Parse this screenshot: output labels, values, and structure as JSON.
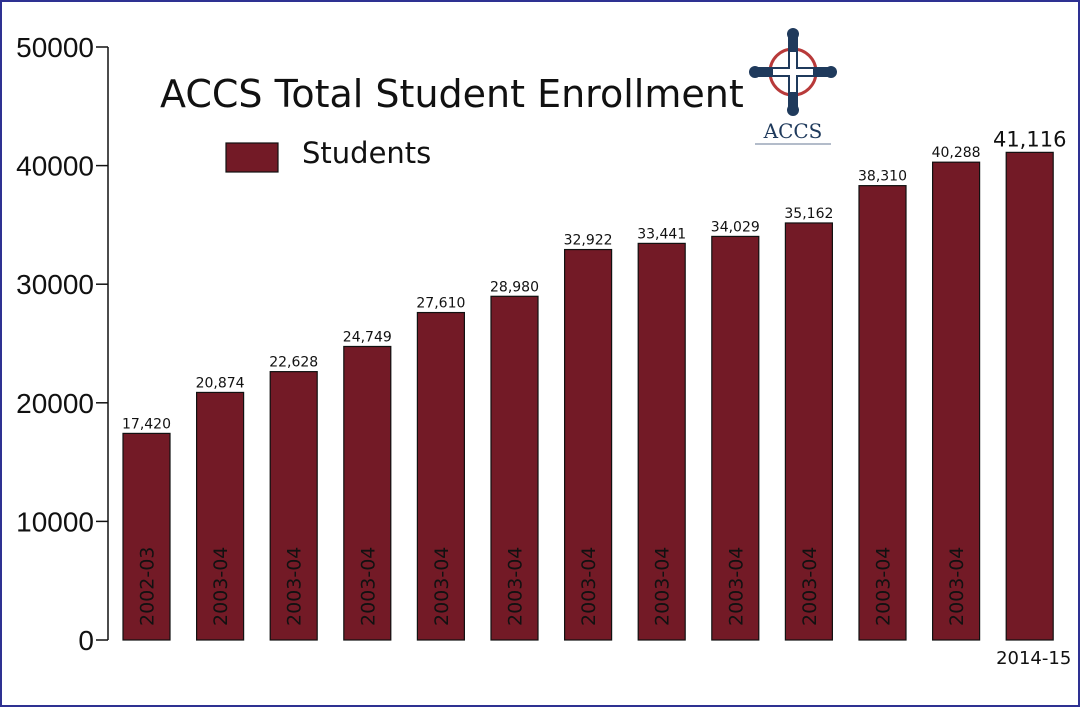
{
  "chart_data": {
    "type": "bar",
    "title": "ACCS Total Student Enrollment",
    "legend": {
      "label": "Students",
      "placement": "top-left"
    },
    "categories": [
      "2002-03",
      "2003-04",
      "2003-04",
      "2003-04",
      "2003-04",
      "2003-04",
      "2003-04",
      "2003-04",
      "2003-04",
      "2003-04",
      "2003-04",
      "2003-04",
      "2014-15"
    ],
    "values": [
      17420,
      20874,
      22628,
      24749,
      27610,
      28980,
      32922,
      33441,
      34029,
      35162,
      38310,
      40288,
      41116
    ],
    "data_labels": [
      "17,420",
      "20,874",
      "22,628",
      "24,749",
      "27,610",
      "28,980",
      "32,922",
      "33,441",
      "34,029",
      "35,162",
      "38,310",
      "40,288",
      "41,116"
    ],
    "y_ticks": [
      "0",
      "10000",
      "20000",
      "30000",
      "40000",
      "50000"
    ],
    "ylim": [
      0,
      50000
    ],
    "bar_color": "#731a26",
    "grid": false
  },
  "logo": {
    "text": "ACCS",
    "icon": "cross-icon"
  }
}
